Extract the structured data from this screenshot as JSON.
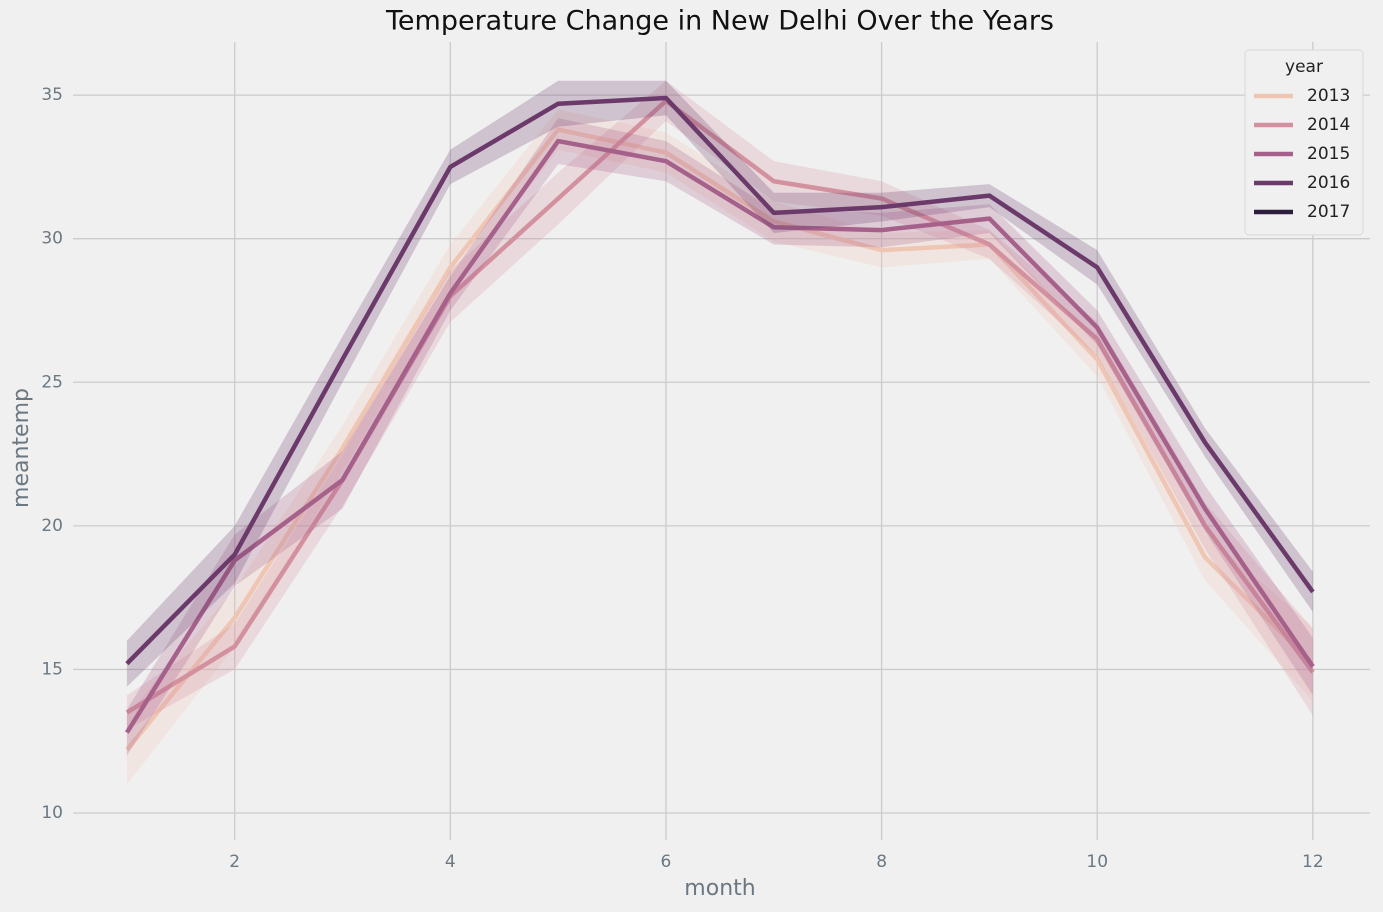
{
  "chart_data": {
    "type": "line",
    "title": "Temperature Change in New Delhi Over the Years",
    "xlabel": "month",
    "ylabel": "meantemp",
    "x": [
      1,
      2,
      3,
      4,
      5,
      6,
      7,
      8,
      9,
      10,
      11,
      12
    ],
    "series": [
      {
        "name": "2013",
        "color": "#efc5b4",
        "values": [
          12.2,
          16.8,
          22.7,
          29.0,
          33.8,
          33.0,
          30.6,
          29.6,
          29.8,
          25.8,
          18.9,
          15.2
        ],
        "ci": [
          1.2,
          1.0,
          0.8,
          0.8,
          0.7,
          0.7,
          0.7,
          0.6,
          0.5,
          0.6,
          0.8,
          1.3
        ]
      },
      {
        "name": "2014",
        "color": "#d3919f",
        "values": [
          13.5,
          15.8,
          21.6,
          28.0,
          31.4,
          34.8,
          32.0,
          31.4,
          29.8,
          26.5,
          20.0,
          14.9
        ],
        "ci": [
          0.6,
          0.8,
          0.9,
          0.9,
          0.9,
          0.7,
          0.7,
          0.6,
          0.5,
          0.6,
          0.8,
          1.5
        ]
      },
      {
        "name": "2015",
        "color": "#a6618b",
        "values": [
          12.8,
          18.8,
          21.6,
          28.1,
          33.4,
          32.7,
          30.4,
          30.3,
          30.7,
          26.9,
          20.6,
          15.1
        ],
        "ci": [
          0.8,
          0.9,
          1.0,
          0.6,
          0.8,
          0.7,
          0.6,
          0.6,
          0.5,
          0.6,
          0.8,
          1.0
        ]
      },
      {
        "name": "2016",
        "color": "#6b3a6b",
        "values": [
          15.2,
          19.0,
          25.8,
          32.5,
          34.7,
          34.9,
          30.9,
          31.1,
          31.5,
          29.0,
          22.9,
          17.7
        ],
        "ci": [
          0.8,
          1.0,
          0.8,
          0.6,
          0.8,
          0.6,
          0.7,
          0.5,
          0.4,
          0.6,
          0.5,
          0.7
        ]
      },
      {
        "name": "2017",
        "color": "#2d1e3e",
        "values": [
          null,
          null,
          null,
          null,
          null,
          null,
          null,
          null,
          null,
          null,
          null,
          null
        ],
        "ci": [
          null,
          null,
          null,
          null,
          null,
          null,
          null,
          null,
          null,
          null,
          null,
          null
        ]
      }
    ],
    "legend_title": "year",
    "legend": "upper right",
    "xlim": [
      0.5,
      12.53
    ],
    "ylim": [
      9.06,
      36.85
    ],
    "xticks": [
      2,
      4,
      6,
      8,
      10,
      12
    ],
    "yticks": [
      10,
      15,
      20,
      25,
      30,
      35
    ],
    "grid": true
  }
}
